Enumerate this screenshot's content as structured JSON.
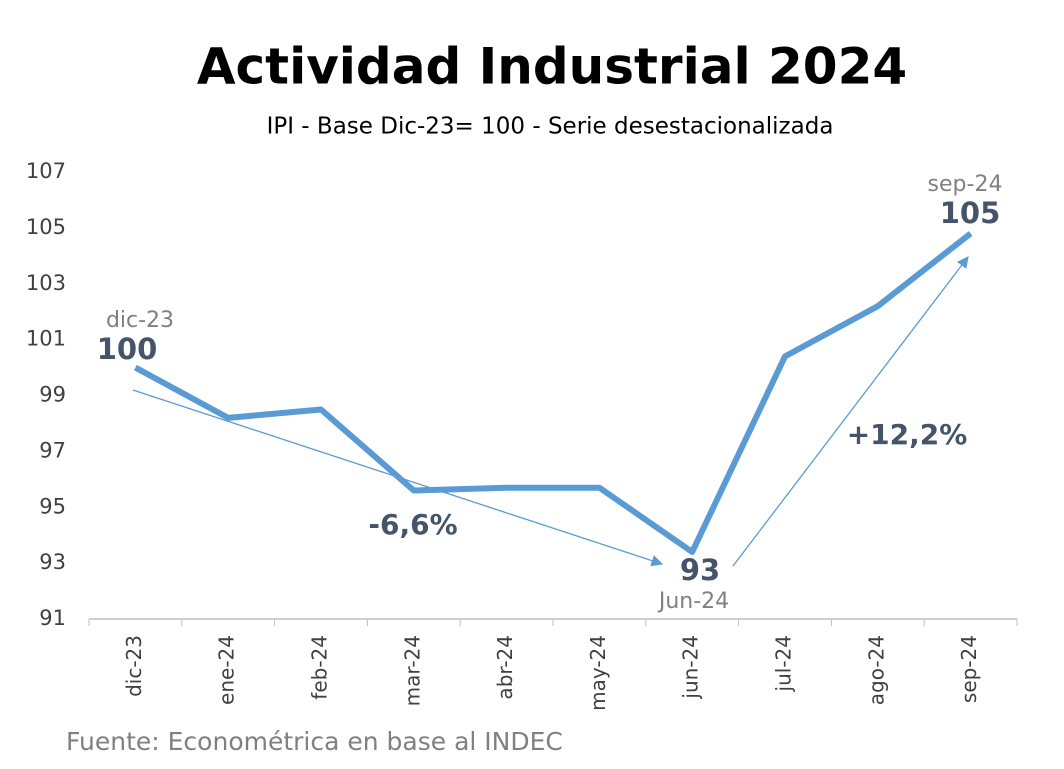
{
  "chart_data": {
    "type": "line",
    "title": "Actividad Industrial 2024",
    "subtitle": "IPI - Base Dic-23= 100 - Serie desestacionalizada",
    "categories": [
      "dic-23",
      "ene-24",
      "feb-24",
      "mar-24",
      "abr-24",
      "may-24",
      "jun-24",
      "jul-24",
      "ago-24",
      "sep-24"
    ],
    "series": [
      {
        "name": "IPI",
        "color": "#5b9bd5",
        "values": [
          100,
          98.2,
          98.5,
          95.6,
          95.7,
          95.7,
          93.4,
          100.4,
          102.2,
          104.8
        ]
      }
    ],
    "ylim": [
      91,
      107
    ],
    "yticks": [
      91,
      93,
      95,
      97,
      99,
      101,
      103,
      105,
      107
    ],
    "grid": false,
    "annotations": [
      "dic-23",
      "100",
      "-6,6%",
      "93",
      "Jun-24",
      "+12,2%",
      "sep-24",
      "105"
    ],
    "source": "Fuente: Econométrica en base al INDEC"
  }
}
